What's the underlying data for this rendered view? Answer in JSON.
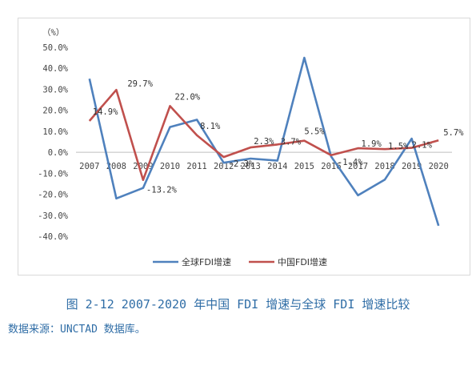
{
  "caption": "图 2-12 2007-2020 年中国 FDI 增速与全球 FDI 增速比较",
  "source": "数据来源：UNCTAD 数据库。",
  "chart_data": {
    "type": "line",
    "unit_label": "（%）",
    "categories": [
      "2007",
      "2008",
      "2009",
      "2010",
      "2011",
      "2012",
      "2013",
      "2014",
      "2015",
      "2016",
      "2017",
      "2018",
      "2019",
      "2020"
    ],
    "y_ticks": [
      "50.0%",
      "40.0%",
      "30.0%",
      "20.0%",
      "10.0%",
      "0.0%",
      "-10.0%",
      "-20.0%",
      "-30.0%",
      "-40.0%"
    ],
    "ylim": [
      -40,
      50
    ],
    "grid": false,
    "legend_position": "bottom",
    "series": [
      {
        "name": "全球FDI增速",
        "color": "#4f81bd",
        "values": [
          35.0,
          -22.0,
          -17.0,
          12.0,
          15.5,
          -5.0,
          -3.0,
          -4.0,
          45.0,
          -2.0,
          -20.5,
          -13.0,
          6.5,
          -35.0
        ],
        "labels": null
      },
      {
        "name": "中国FDI增速",
        "color": "#c0504d",
        "values": [
          14.9,
          29.7,
          -13.2,
          22.0,
          8.1,
          -2.3,
          2.3,
          3.7,
          5.5,
          -1.4,
          1.9,
          1.5,
          2.1,
          5.7
        ],
        "labels": [
          "14.9%",
          "29.7%",
          "-13.2%",
          "22.0%",
          "8.1%",
          "-2.3%",
          "2.3%",
          "3.7%",
          "5.5%",
          "-1.4%",
          "1.9%",
          "1.5%",
          "2.1%",
          "5.7%"
        ]
      }
    ]
  }
}
